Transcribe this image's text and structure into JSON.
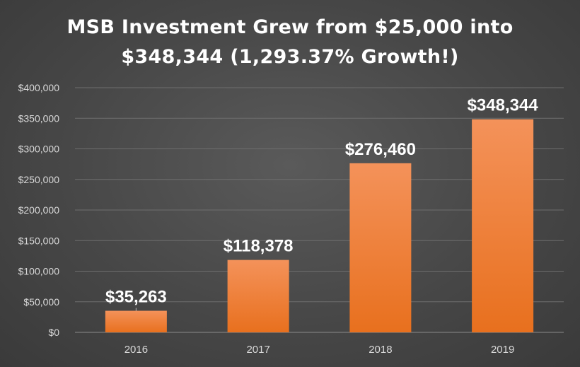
{
  "chart_data": {
    "type": "bar",
    "title_lines": [
      "MSB Investment Grew from $25,000 into",
      "$348,344 (1,293.37% Growth!)"
    ],
    "categories": [
      "2016",
      "2017",
      "2018",
      "2019"
    ],
    "values": [
      35263,
      118378,
      276460,
      348344
    ],
    "data_labels": [
      "$35,263",
      "$118,378",
      "$276,460",
      "$348,344"
    ],
    "ylim": [
      0,
      400000
    ],
    "yticks": [
      0,
      50000,
      100000,
      150000,
      200000,
      250000,
      300000,
      350000,
      400000
    ],
    "ytick_labels": [
      "$0",
      "$50,000",
      "$100,000",
      "$150,000",
      "$200,000",
      "$250,000",
      "$300,000",
      "$350,000",
      "$400,000"
    ],
    "grid": true,
    "legend": "none",
    "colors": {
      "bar_top": "#f4925a",
      "bar_bottom": "#e8701e",
      "grid": "#6e6e6e",
      "axis_text": "#d9d9d9",
      "label_text": "#ffffff"
    }
  }
}
